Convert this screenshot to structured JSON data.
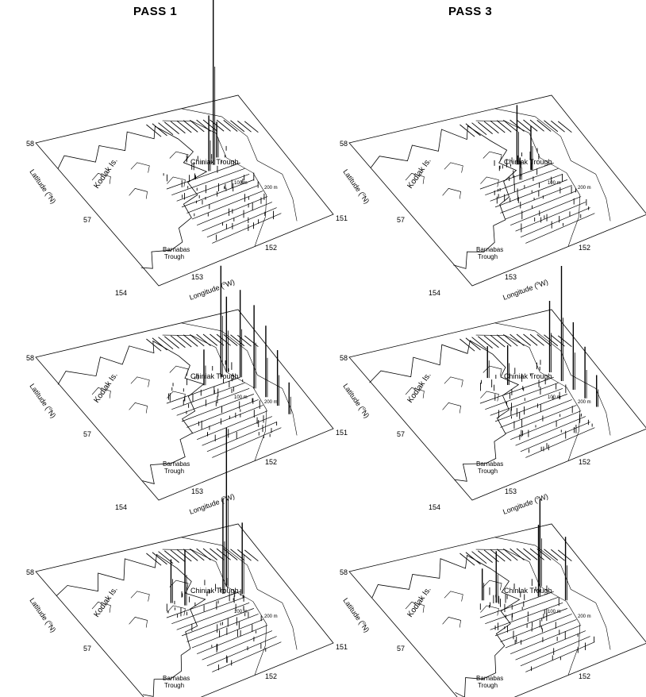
{
  "columns": [
    {
      "title": "PASS 1"
    },
    {
      "title": "PASS 3"
    }
  ],
  "panel_labels": {
    "lat_58": "58",
    "lat_57": "57",
    "lat_axis_prefix": "Latitude (",
    "lat_axis_unit": "N)",
    "degree_symbol": "o",
    "lon_154": "154",
    "lon_153": "153",
    "lon_152": "152",
    "lon_151": "151",
    "lon_axis_prefix": "Longitude (",
    "lon_axis_unit": "W)",
    "kodiak": "Kodiak Is.",
    "chiniak": "Chiniak Trough",
    "barnabas_1": "Barnabas",
    "barnabas_2": "Trough",
    "iso100": "100 m",
    "iso200": "200 m"
  },
  "panels": [
    {
      "id": "pass1-row1",
      "peaks": [
        {
          "t": 0.66,
          "u": 0.42,
          "h": 225
        },
        {
          "t": 0.62,
          "u": 0.45,
          "h": 70
        },
        {
          "t": 0.7,
          "u": 0.38,
          "h": 45
        }
      ]
    },
    {
      "id": "pass3-row1",
      "peaks": [
        {
          "t": 0.62,
          "u": 0.4,
          "h": 75
        },
        {
          "t": 0.66,
          "u": 0.46,
          "h": 55
        },
        {
          "t": 0.58,
          "u": 0.5,
          "h": 28
        }
      ]
    },
    {
      "id": "pass1-row2",
      "peaks": [
        {
          "t": 0.7,
          "u": 0.42,
          "h": 140
        },
        {
          "t": 0.74,
          "u": 0.4,
          "h": 95
        },
        {
          "t": 0.78,
          "u": 0.46,
          "h": 110
        },
        {
          "t": 0.8,
          "u": 0.56,
          "h": 105
        },
        {
          "t": 0.82,
          "u": 0.64,
          "h": 90
        },
        {
          "t": 0.84,
          "u": 0.72,
          "h": 70
        },
        {
          "t": 0.86,
          "u": 0.8,
          "h": 40
        },
        {
          "t": 0.6,
          "u": 0.44,
          "h": 45
        }
      ]
    },
    {
      "id": "pass3-row2",
      "peaks": [
        {
          "t": 0.8,
          "u": 0.5,
          "h": 145
        },
        {
          "t": 0.78,
          "u": 0.42,
          "h": 90
        },
        {
          "t": 0.82,
          "u": 0.58,
          "h": 85
        },
        {
          "t": 0.84,
          "u": 0.66,
          "h": 65
        },
        {
          "t": 0.86,
          "u": 0.74,
          "h": 40
        },
        {
          "t": 0.56,
          "u": 0.42,
          "h": 50
        },
        {
          "t": 0.5,
          "u": 0.34,
          "h": 40
        }
      ]
    },
    {
      "id": "pass1-row3",
      "peaks": [
        {
          "t": 0.74,
          "u": 0.4,
          "h": 200
        },
        {
          "t": 0.7,
          "u": 0.44,
          "h": 120
        },
        {
          "t": 0.78,
          "u": 0.48,
          "h": 90
        },
        {
          "t": 0.5,
          "u": 0.44,
          "h": 70
        },
        {
          "t": 0.45,
          "u": 0.4,
          "h": 55
        }
      ]
    },
    {
      "id": "pass3-row3",
      "peaks": [
        {
          "t": 0.74,
          "u": 0.4,
          "h": 110
        },
        {
          "t": 0.7,
          "u": 0.46,
          "h": 90
        },
        {
          "t": 0.8,
          "u": 0.54,
          "h": 80
        },
        {
          "t": 0.5,
          "u": 0.42,
          "h": 65
        },
        {
          "t": 0.45,
          "u": 0.38,
          "h": 40
        }
      ]
    }
  ]
}
